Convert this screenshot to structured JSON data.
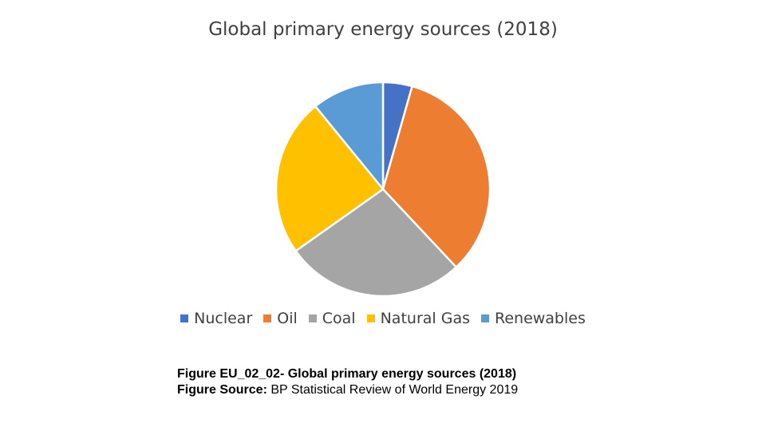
{
  "chart_data": {
    "type": "pie",
    "title": "Global primary energy sources (2018)",
    "series": [
      {
        "name": "Nuclear",
        "value": 4.4,
        "color": "#4472C4"
      },
      {
        "name": "Oil",
        "value": 33.6,
        "color": "#ED7D31"
      },
      {
        "name": "Coal",
        "value": 27.2,
        "color": "#A5A5A5"
      },
      {
        "name": "Natural Gas",
        "value": 23.9,
        "color": "#FFC000"
      },
      {
        "name": "Renewables",
        "value": 10.9,
        "color": "#5B9BD5"
      }
    ],
    "legend_position": "bottom",
    "start_angle": "top",
    "direction": "clockwise"
  },
  "caption": {
    "line1": "Figure EU_02_02- Global primary energy sources (2018)",
    "line2_label": "Figure Source:",
    "line2_text": " BP Statistical Review of World Energy 2019"
  }
}
